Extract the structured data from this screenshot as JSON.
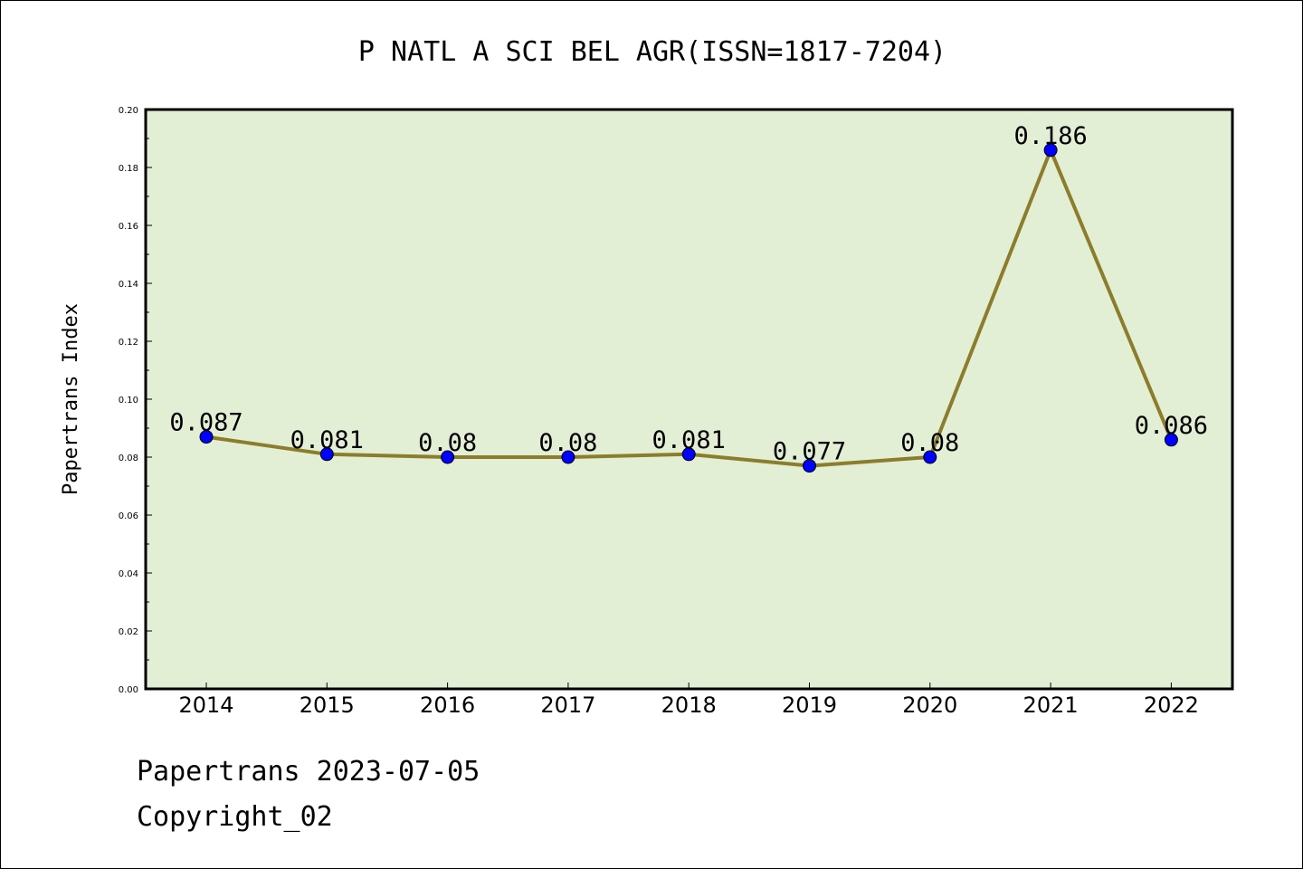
{
  "colors": {
    "plot_background": "#e2efd5",
    "line": "#8b7d2b",
    "marker": "#0000ff",
    "axis": "#000000",
    "page_background": "#ffffff"
  },
  "chart_data": {
    "type": "line",
    "title": "P NATL A SCI BEL AGR(ISSN=1817-7204)",
    "xlabel": "",
    "ylabel": "Papertrans Index",
    "categories": [
      "2014",
      "2015",
      "2016",
      "2017",
      "2018",
      "2019",
      "2020",
      "2021",
      "2022"
    ],
    "series": [
      {
        "name": "Papertrans Index",
        "values": [
          0.087,
          0.081,
          0.08,
          0.08,
          0.081,
          0.077,
          0.08,
          0.186,
          0.086
        ],
        "labels": [
          "0.087",
          "0.081",
          "0.08",
          "0.08",
          "0.081",
          "0.077",
          "0.08",
          "0.186",
          "0.086"
        ]
      }
    ],
    "ylim": [
      0,
      0.2
    ],
    "yticks": [
      "0.00",
      "0.02",
      "0.04",
      "0.06",
      "0.08",
      "0.10",
      "0.12",
      "0.14",
      "0.16",
      "0.18",
      "0.20"
    ],
    "grid": false,
    "legend": "none"
  },
  "footer": {
    "date_line": "Papertrans 2023-07-05",
    "copyright_line": "Copyright_02"
  }
}
